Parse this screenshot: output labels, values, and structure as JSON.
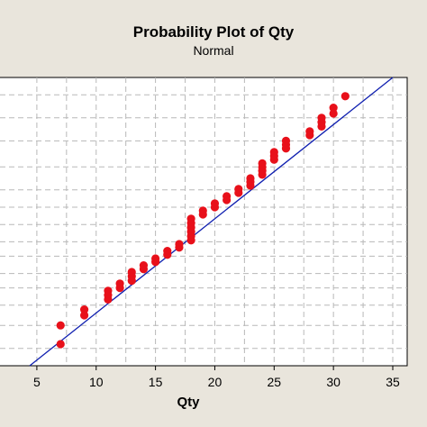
{
  "chart_data": {
    "type": "scatter",
    "title": "Probability Plot of Qty",
    "subtitle": "Normal",
    "xlabel": "Qty",
    "ylabel": "",
    "xlim": [
      2.5,
      35.5
    ],
    "xticks": [
      5,
      10,
      15,
      20,
      25,
      30,
      35
    ],
    "grid": true,
    "colors": {
      "points": "#e8101a",
      "fit_line": "#1020b0",
      "background": "#e9e5dc",
      "plot_bg": "#ffffff",
      "grid": "#b8b8b8"
    },
    "fit_line": {
      "x": [
        4.4,
        35.0
      ],
      "y_fraction": [
        0.0,
        1.0
      ]
    },
    "points": [
      {
        "x": 7,
        "y": 0.075
      },
      {
        "x": 7,
        "y": 0.14
      },
      {
        "x": 9,
        "y": 0.175
      },
      {
        "x": 9,
        "y": 0.195
      },
      {
        "x": 11,
        "y": 0.23
      },
      {
        "x": 11,
        "y": 0.245
      },
      {
        "x": 11,
        "y": 0.26
      },
      {
        "x": 12,
        "y": 0.27
      },
      {
        "x": 12,
        "y": 0.285
      },
      {
        "x": 13,
        "y": 0.295
      },
      {
        "x": 13,
        "y": 0.31
      },
      {
        "x": 13,
        "y": 0.325
      },
      {
        "x": 14,
        "y": 0.335
      },
      {
        "x": 14,
        "y": 0.348
      },
      {
        "x": 15,
        "y": 0.36
      },
      {
        "x": 15,
        "y": 0.372
      },
      {
        "x": 16,
        "y": 0.385
      },
      {
        "x": 16,
        "y": 0.398
      },
      {
        "x": 17,
        "y": 0.41
      },
      {
        "x": 17,
        "y": 0.422
      },
      {
        "x": 18,
        "y": 0.435
      },
      {
        "x": 18,
        "y": 0.45
      },
      {
        "x": 18,
        "y": 0.465
      },
      {
        "x": 18,
        "y": 0.48
      },
      {
        "x": 18,
        "y": 0.495
      },
      {
        "x": 18,
        "y": 0.51
      },
      {
        "x": 19,
        "y": 0.525
      },
      {
        "x": 19,
        "y": 0.538
      },
      {
        "x": 20,
        "y": 0.55
      },
      {
        "x": 20,
        "y": 0.563
      },
      {
        "x": 21,
        "y": 0.575
      },
      {
        "x": 21,
        "y": 0.588
      },
      {
        "x": 22,
        "y": 0.6
      },
      {
        "x": 22,
        "y": 0.613
      },
      {
        "x": 23,
        "y": 0.625
      },
      {
        "x": 23,
        "y": 0.638
      },
      {
        "x": 23,
        "y": 0.65
      },
      {
        "x": 24,
        "y": 0.663
      },
      {
        "x": 24,
        "y": 0.676
      },
      {
        "x": 24,
        "y": 0.689
      },
      {
        "x": 24,
        "y": 0.702
      },
      {
        "x": 25,
        "y": 0.715
      },
      {
        "x": 25,
        "y": 0.728
      },
      {
        "x": 25,
        "y": 0.741
      },
      {
        "x": 26,
        "y": 0.754
      },
      {
        "x": 26,
        "y": 0.767
      },
      {
        "x": 26,
        "y": 0.78
      },
      {
        "x": 28,
        "y": 0.8
      },
      {
        "x": 28,
        "y": 0.813
      },
      {
        "x": 29,
        "y": 0.83
      },
      {
        "x": 29,
        "y": 0.845
      },
      {
        "x": 29,
        "y": 0.86
      },
      {
        "x": 30,
        "y": 0.875
      },
      {
        "x": 30,
        "y": 0.895
      },
      {
        "x": 31,
        "y": 0.935
      }
    ]
  }
}
